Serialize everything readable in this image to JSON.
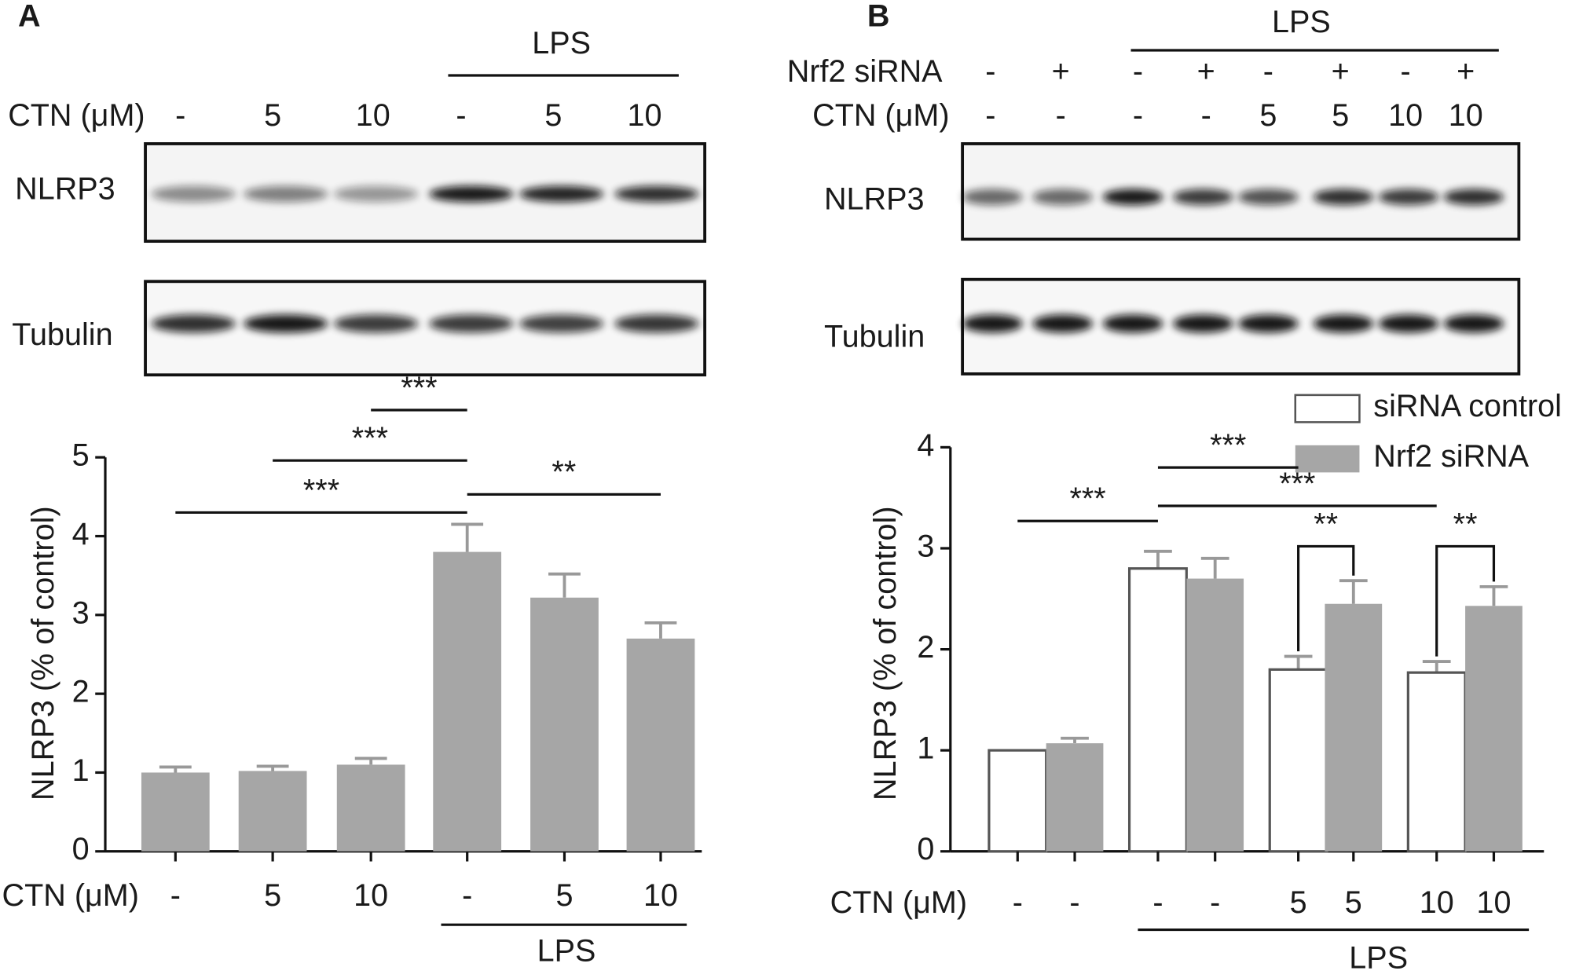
{
  "chart_data": [
    {
      "type": "bar",
      "panel_label": "A",
      "blot": {
        "lps_label": "LPS",
        "rows": [
          {
            "label": "CTN (μM)",
            "values": [
              "-",
              "5",
              "10",
              "-",
              "5",
              "10"
            ]
          }
        ],
        "bands": [
          "NLRP3",
          "Tubulin"
        ]
      },
      "categories": [
        "-",
        "5",
        "10",
        "-",
        "5",
        "10"
      ],
      "x_label": "CTN (μM)",
      "group_label": "LPS",
      "values": [
        1.0,
        1.02,
        1.1,
        3.8,
        3.22,
        2.7
      ],
      "errors": [
        0.07,
        0.06,
        0.08,
        0.35,
        0.3,
        0.2
      ],
      "color": "#a6a6a6",
      "ylabel": "NLRP3 (% of control)",
      "ylim": [
        0,
        5
      ],
      "yticks": [
        0,
        1,
        2,
        3,
        4,
        5
      ],
      "annotations": [
        {
          "text": "***",
          "from": 2,
          "to": 3,
          "y": 5.6
        },
        {
          "text": "***",
          "from": 1,
          "to": 3,
          "y": 4.96
        },
        {
          "text": "***",
          "from": 0,
          "to": 3,
          "y": 4.3
        },
        {
          "text": "**",
          "from": 3,
          "to": 5,
          "y": 4.53
        }
      ]
    },
    {
      "type": "grouped_bar",
      "panel_label": "B",
      "blot": {
        "lps_label": "LPS",
        "rows": [
          {
            "label": "Nrf2 siRNA",
            "values": [
              "-",
              "+",
              "-",
              "+",
              "-",
              "+",
              "-",
              "+"
            ]
          },
          {
            "label": "CTN (μM)",
            "values": [
              "-",
              "-",
              "-",
              "-",
              "5",
              "5",
              "10",
              "10"
            ]
          }
        ],
        "bands": [
          "NLRP3",
          "Tubulin"
        ]
      },
      "x_label": "CTN (μM)",
      "group_label": "LPS",
      "series": [
        {
          "name": "siRNA control",
          "color": "#ffffff",
          "labels": [
            "-",
            "-",
            "5",
            "10"
          ],
          "values": [
            1.0,
            2.8,
            1.8,
            1.77
          ],
          "errors": [
            0,
            0.17,
            0.13,
            0.11
          ]
        },
        {
          "name": "Nrf2 siRNA",
          "color": "#a6a6a6",
          "labels": [
            "-",
            "-",
            "5",
            "10"
          ],
          "values": [
            1.07,
            2.7,
            2.45,
            2.43
          ],
          "errors": [
            0.05,
            0.2,
            0.23,
            0.19
          ]
        }
      ],
      "ylabel": "NLRP3 (% of control)",
      "ylim": [
        0,
        4
      ],
      "yticks": [
        0,
        1,
        2,
        3,
        4
      ],
      "annotations": [
        {
          "text": "***",
          "from": [
            0,
            0
          ],
          "to": [
            1,
            0
          ],
          "y": 3.27
        },
        {
          "text": "***",
          "from": [
            1,
            0
          ],
          "to": [
            2,
            0
          ],
          "y": 3.8
        },
        {
          "text": "***",
          "from": [
            1,
            0
          ],
          "to": [
            3,
            0
          ],
          "y": 3.42
        },
        {
          "text": "**",
          "from": [
            2,
            0
          ],
          "to": [
            2,
            1
          ],
          "y": 3.02,
          "bracket": true
        },
        {
          "text": "**",
          "from": [
            3,
            0
          ],
          "to": [
            3,
            1
          ],
          "y": 3.02,
          "bracket": true
        }
      ]
    }
  ]
}
